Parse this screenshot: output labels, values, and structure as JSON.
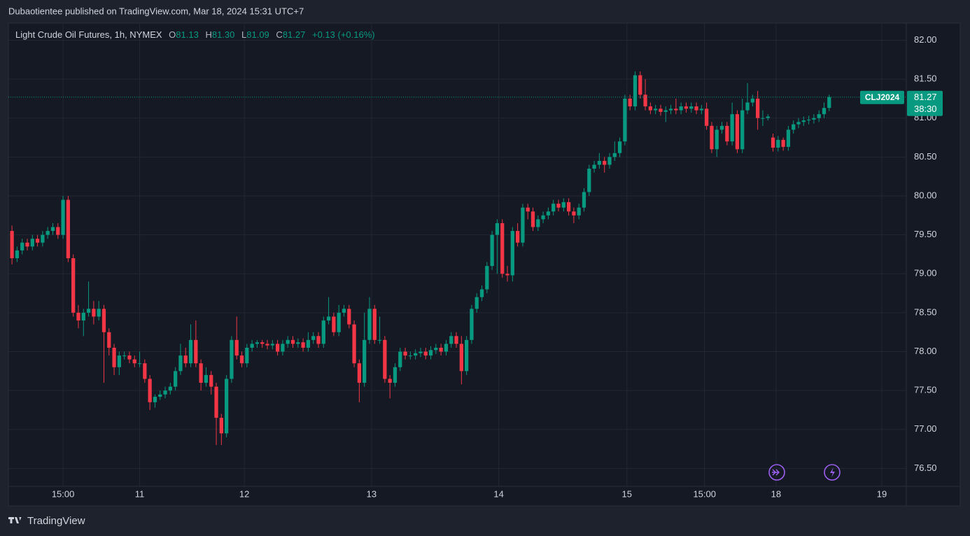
{
  "publisher": "Dubaotientee published on TradingView.com, Mar 18, 2024 15:31 UTC+7",
  "footer": "TradingView",
  "chart_data": {
    "type": "candlestick",
    "title": "Light Crude Oil Futures, 1h, NYMEX",
    "legend": [
      {
        "label": "O",
        "value": "81.13"
      },
      {
        "label": "H",
        "value": "81.30"
      },
      {
        "label": "L",
        "value": "81.09"
      },
      {
        "label": "C",
        "value": "81.27"
      }
    ],
    "change": "+0.13 (+0.16%)",
    "symbol": "CLJ2024",
    "last_price": {
      "value": 81.27,
      "label": "81.27"
    },
    "countdown": "38:30",
    "up_color": "#089981",
    "down_color": "#f23645",
    "open": [
      79.55,
      79.2,
      79.3,
      79.4,
      79.35,
      79.45,
      79.4,
      79.5,
      79.55,
      79.6,
      79.5,
      79.95,
      79.2,
      78.5,
      78.4,
      78.5,
      78.55,
      78.45,
      78.55,
      78.25,
      78.05,
      77.8,
      77.95,
      77.95,
      77.9,
      77.85,
      77.85,
      77.65,
      77.35,
      77.42,
      77.45,
      77.5,
      77.55,
      77.75,
      77.95,
      77.85,
      78.15,
      77.85,
      77.6,
      77.7,
      77.55,
      77.15,
      76.95,
      77.65,
      78.15,
      77.95,
      77.85,
      78.05,
      78.1,
      78.12,
      78.1,
      78.08,
      78.1,
      78.0,
      78.1,
      78.15,
      78.1,
      78.12,
      78.05,
      78.15,
      78.2,
      78.1,
      78.4,
      78.45,
      78.25,
      78.5,
      78.55,
      78.35,
      77.85,
      77.6,
      78.15,
      78.55,
      78.15,
      78.15,
      77.65,
      77.6,
      77.8,
      78.0,
      77.95,
      77.95,
      77.98,
      78.0,
      77.95,
      78.02,
      78.05,
      78.0,
      78.1,
      78.2,
      78.1,
      77.75,
      78.15,
      78.55,
      78.7,
      78.8,
      79.1,
      79.5,
      79.65,
      79.0,
      78.98,
      79.55,
      79.4,
      79.85,
      79.8,
      79.6,
      79.7,
      79.75,
      79.8,
      79.9,
      79.85,
      79.92,
      79.8,
      79.75,
      79.85,
      80.05,
      80.35,
      80.4,
      80.45,
      80.4,
      80.5,
      80.55,
      80.7,
      81.25,
      81.15,
      81.55,
      81.3,
      81.15,
      81.1,
      81.12,
      81.08,
      81.1,
      81.12,
      81.1,
      81.15,
      81.12,
      81.15,
      81.1,
      81.12,
      80.9,
      80.6,
      80.85,
      80.9,
      80.7,
      81.05,
      80.6,
      81.1,
      81.2,
      81.25,
      81.0,
      81.0,
      80.75,
      80.62,
      80.72,
      80.63,
      80.85,
      80.92,
      80.95,
      80.97,
      80.98,
      81.0,
      81.05,
      81.13
    ],
    "high": [
      79.62,
      79.35,
      79.45,
      79.45,
      79.5,
      79.5,
      79.55,
      79.6,
      79.65,
      79.65,
      80.0,
      80.0,
      79.25,
      78.6,
      78.55,
      78.9,
      78.65,
      78.65,
      78.6,
      78.3,
      78.1,
      78.0,
      78.0,
      78.0,
      77.95,
      78.0,
      77.9,
      77.7,
      77.45,
      77.5,
      77.55,
      77.6,
      77.8,
      78.1,
      78.05,
      78.35,
      78.4,
      77.9,
      77.8,
      77.75,
      77.6,
      77.2,
      77.7,
      78.2,
      78.45,
      78.0,
      78.1,
      78.15,
      78.15,
      78.15,
      78.15,
      78.15,
      78.15,
      78.15,
      78.2,
      78.2,
      78.17,
      78.17,
      78.25,
      78.25,
      78.25,
      78.45,
      78.7,
      78.5,
      78.6,
      78.6,
      78.6,
      78.4,
      77.9,
      78.5,
      78.7,
      78.6,
      78.45,
      78.2,
      77.7,
      77.85,
      78.05,
      78.05,
      78.0,
      78.03,
      78.05,
      78.05,
      78.07,
      78.1,
      78.1,
      78.15,
      78.25,
      78.25,
      78.2,
      78.2,
      78.6,
      78.75,
      78.85,
      79.15,
      79.55,
      79.7,
      79.7,
      79.1,
      79.6,
      79.65,
      79.9,
      79.9,
      79.85,
      79.75,
      79.8,
      79.85,
      79.95,
      79.95,
      79.97,
      79.97,
      79.85,
      79.9,
      80.1,
      80.4,
      80.45,
      80.55,
      80.5,
      80.55,
      80.7,
      80.75,
      81.3,
      81.3,
      81.6,
      81.6,
      81.5,
      81.2,
      81.17,
      81.17,
      81.15,
      81.17,
      81.25,
      81.2,
      81.2,
      81.2,
      81.2,
      81.17,
      81.2,
      80.95,
      80.9,
      80.95,
      80.95,
      81.2,
      81.1,
      81.25,
      81.45,
      81.3,
      81.35,
      81.1,
      81.05,
      80.8,
      80.77,
      80.75,
      80.9,
      80.97,
      81.0,
      81.02,
      81.03,
      81.05,
      81.1,
      81.2,
      81.3
    ],
    "low": [
      79.12,
      79.15,
      79.25,
      79.3,
      79.3,
      79.35,
      79.35,
      79.45,
      79.5,
      79.45,
      79.45,
      79.15,
      78.45,
      78.3,
      78.2,
      78.45,
      78.35,
      78.4,
      77.6,
      77.95,
      77.7,
      77.7,
      77.9,
      77.85,
      77.8,
      77.8,
      77.6,
      77.25,
      77.28,
      77.38,
      77.4,
      77.45,
      77.5,
      77.7,
      77.8,
      77.8,
      77.8,
      77.5,
      77.55,
      77.45,
      76.8,
      76.8,
      76.9,
      77.6,
      77.9,
      77.8,
      77.8,
      78.0,
      78.05,
      78.05,
      78.03,
      78.03,
      77.95,
      77.95,
      78.05,
      78.05,
      78.05,
      78.0,
      78.0,
      78.1,
      78.05,
      78.05,
      78.35,
      78.2,
      78.2,
      78.45,
      78.3,
      77.8,
      77.35,
      77.55,
      78.1,
      78.1,
      78.1,
      77.6,
      77.4,
      77.55,
      77.75,
      77.9,
      77.9,
      77.9,
      77.93,
      77.9,
      77.9,
      77.97,
      77.95,
      77.95,
      78.05,
      78.05,
      77.58,
      77.7,
      78.1,
      78.5,
      78.65,
      78.75,
      79.05,
      79.0,
      78.95,
      78.9,
      78.9,
      79.35,
      79.35,
      79.7,
      79.55,
      79.55,
      79.65,
      79.7,
      79.75,
      79.8,
      79.8,
      79.75,
      79.65,
      79.7,
      79.8,
      80.0,
      80.3,
      80.35,
      80.3,
      80.35,
      80.45,
      80.5,
      80.65,
      81.1,
      81.1,
      81.25,
      81.1,
      81.05,
      81.05,
      81.03,
      80.95,
      81.05,
      81.05,
      81.05,
      81.07,
      81.07,
      81.05,
      81.05,
      80.85,
      80.55,
      80.5,
      80.8,
      80.65,
      80.65,
      80.55,
      80.55,
      81.05,
      81.15,
      80.85,
      80.9,
      80.97,
      80.57,
      80.57,
      80.58,
      80.58,
      80.8,
      80.87,
      80.9,
      80.92,
      80.93,
      80.95,
      81.0,
      81.09
    ],
    "close": [
      79.2,
      79.3,
      79.4,
      79.35,
      79.45,
      79.4,
      79.5,
      79.55,
      79.6,
      79.5,
      79.95,
      79.2,
      78.5,
      78.4,
      78.5,
      78.55,
      78.45,
      78.55,
      78.25,
      78.05,
      77.8,
      77.95,
      77.95,
      77.9,
      77.85,
      77.85,
      77.65,
      77.35,
      77.42,
      77.45,
      77.5,
      77.55,
      77.75,
      77.95,
      77.85,
      78.15,
      77.85,
      77.6,
      77.7,
      77.55,
      77.15,
      76.95,
      77.65,
      78.15,
      77.95,
      77.85,
      78.05,
      78.1,
      78.12,
      78.1,
      78.08,
      78.1,
      78.0,
      78.1,
      78.15,
      78.1,
      78.12,
      78.05,
      78.15,
      78.2,
      78.1,
      78.4,
      78.45,
      78.25,
      78.5,
      78.55,
      78.35,
      77.85,
      77.6,
      78.15,
      78.55,
      78.15,
      78.15,
      77.65,
      77.6,
      77.8,
      78.0,
      77.95,
      77.95,
      77.98,
      78.0,
      77.95,
      78.02,
      78.05,
      78.0,
      78.1,
      78.2,
      78.1,
      77.75,
      78.15,
      78.55,
      78.7,
      78.8,
      79.1,
      79.5,
      79.65,
      79.0,
      78.98,
      79.55,
      79.4,
      79.85,
      79.8,
      79.6,
      79.7,
      79.75,
      79.8,
      79.9,
      79.85,
      79.92,
      79.8,
      79.75,
      79.85,
      80.05,
      80.35,
      80.4,
      80.45,
      80.4,
      80.5,
      80.55,
      80.7,
      81.25,
      81.15,
      81.55,
      81.3,
      81.15,
      81.1,
      81.12,
      81.08,
      81.1,
      81.12,
      81.1,
      81.15,
      81.12,
      81.15,
      81.1,
      81.12,
      80.9,
      80.6,
      80.85,
      80.9,
      80.7,
      81.05,
      80.6,
      81.1,
      81.2,
      81.25,
      81.0,
      81.0,
      81.02,
      80.62,
      80.72,
      80.63,
      80.85,
      80.92,
      80.95,
      80.97,
      80.98,
      81.0,
      81.05,
      81.13,
      81.27
    ],
    "xlim": [
      -0.7,
      175.1
    ],
    "xticks": [
      {
        "value": 10,
        "label": "15:00"
      },
      {
        "value": 25,
        "label": "11"
      },
      {
        "value": 45.5,
        "label": "12"
      },
      {
        "value": 70.4,
        "label": "13"
      },
      {
        "value": 95.3,
        "label": "14"
      },
      {
        "value": 120.4,
        "label": "15"
      },
      {
        "value": 135.6,
        "label": "15:00"
      },
      {
        "value": 149.6,
        "label": "18"
      },
      {
        "value": 170.3,
        "label": "19"
      }
    ],
    "ylim": [
      76.27,
      82.22
    ],
    "yticks": [
      {
        "value": 76.5,
        "label": "76.50"
      },
      {
        "value": 77,
        "label": "77.00"
      },
      {
        "value": 77.5,
        "label": "77.50"
      },
      {
        "value": 78,
        "label": "78.00"
      },
      {
        "value": 78.5,
        "label": "78.50"
      },
      {
        "value": 79,
        "label": "79.00"
      },
      {
        "value": 79.5,
        "label": "79.50"
      },
      {
        "value": 80,
        "label": "80.00"
      },
      {
        "value": 80.5,
        "label": "80.50"
      },
      {
        "value": 81,
        "label": "81.00"
      },
      {
        "value": 81.5,
        "label": "81.50"
      },
      {
        "value": 82,
        "label": "82.00"
      }
    ],
    "grid": true
  }
}
